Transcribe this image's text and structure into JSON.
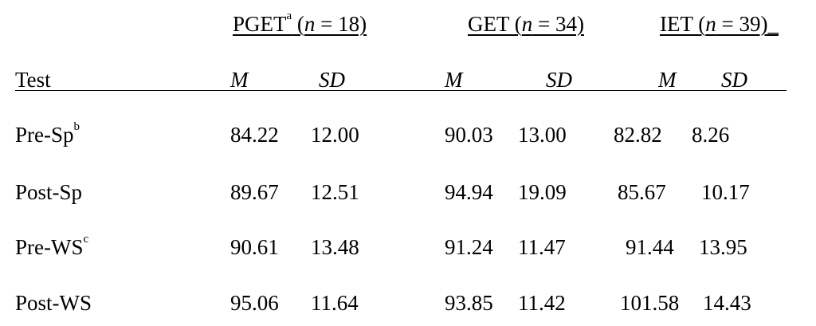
{
  "table": {
    "groups": [
      {
        "name": "PGET",
        "sup": "a",
        "open": " (",
        "n_label": "n",
        "n_value": " = 18)",
        "trail": ""
      },
      {
        "name": "GET",
        "sup": "",
        "open": " (",
        "n_label": "n",
        "n_value": " = 34)",
        "trail": ""
      },
      {
        "name": "IET",
        "sup": "",
        "open": " (",
        "n_label": "n",
        "n_value": " = 39)",
        "trail": "_"
      }
    ],
    "row_header": "Test",
    "stat_labels": {
      "mean": "M",
      "sd": "SD"
    },
    "rows": [
      {
        "label": "Pre-Sp",
        "sup": "b",
        "values": [
          "84.22",
          "12.00",
          "90.03",
          "13.00",
          "82.82",
          "8.26"
        ]
      },
      {
        "label": "Post-Sp",
        "sup": "",
        "values": [
          "89.67",
          "12.51",
          "94.94",
          "19.09",
          "85.67",
          "10.17"
        ]
      },
      {
        "label": "Pre-WS",
        "sup": "c",
        "values": [
          "90.61",
          "13.48",
          "91.24",
          "11.47",
          "91.44",
          "13.95"
        ]
      },
      {
        "label": "Post-WS",
        "sup": "",
        "values": [
          "95.06",
          "11.64",
          "93.85",
          "11.42",
          "101.58",
          "14.43"
        ]
      }
    ]
  }
}
